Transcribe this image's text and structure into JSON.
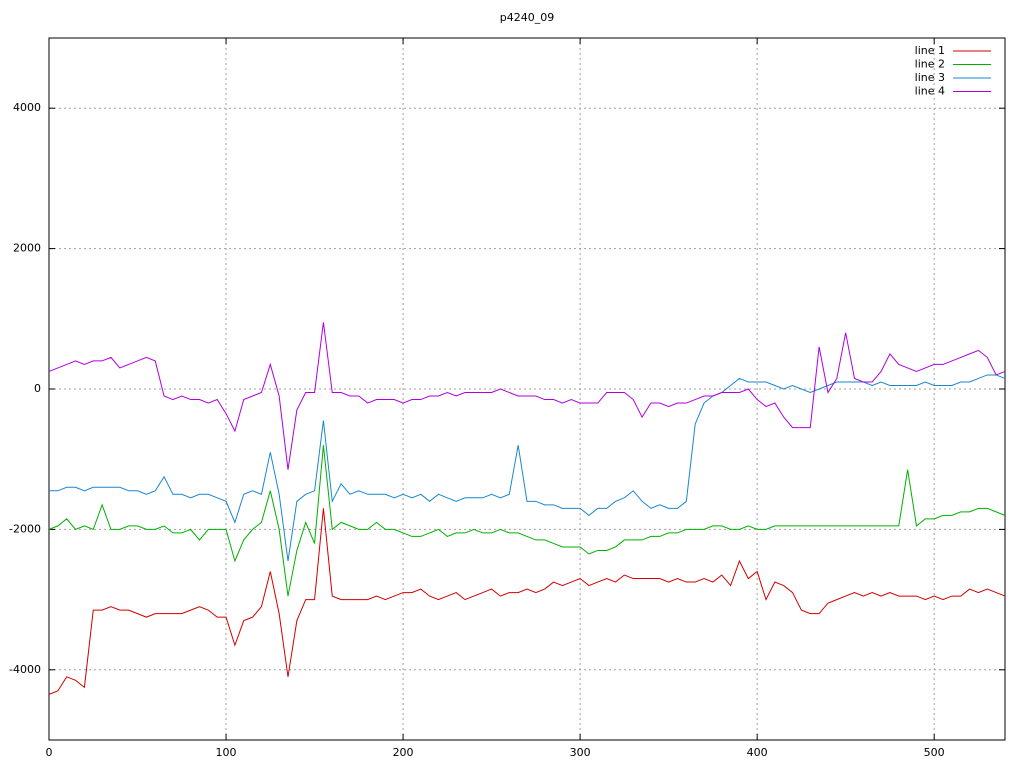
{
  "chart_data": {
    "type": "line",
    "title": "p4240_09",
    "x": [
      0,
      5,
      10,
      15,
      20,
      25,
      30,
      35,
      40,
      45,
      50,
      55,
      60,
      65,
      70,
      75,
      80,
      85,
      90,
      95,
      100,
      105,
      110,
      115,
      120,
      125,
      130,
      135,
      140,
      145,
      150,
      155,
      160,
      165,
      170,
      175,
      180,
      185,
      190,
      195,
      200,
      205,
      210,
      215,
      220,
      225,
      230,
      235,
      240,
      245,
      250,
      255,
      260,
      265,
      270,
      275,
      280,
      285,
      290,
      295,
      300,
      305,
      310,
      315,
      320,
      325,
      330,
      335,
      340,
      345,
      350,
      355,
      360,
      365,
      370,
      375,
      380,
      385,
      390,
      395,
      400,
      405,
      410,
      415,
      420,
      425,
      430,
      435,
      440,
      445,
      450,
      455,
      460,
      465,
      470,
      475,
      480,
      485,
      490,
      495,
      500,
      505,
      510,
      515,
      520,
      525,
      530,
      535,
      540
    ],
    "series": [
      {
        "name": "line 1",
        "color": "#d00000",
        "values": [
          -4350,
          -4300,
          -4100,
          -4150,
          -4250,
          -3150,
          -3150,
          -3100,
          -3150,
          -3150,
          -3200,
          -3250,
          -3200,
          -3200,
          -3200,
          -3200,
          -3150,
          -3100,
          -3150,
          -3250,
          -3250,
          -3650,
          -3300,
          -3250,
          -3100,
          -2600,
          -3200,
          -4100,
          -3300,
          -3000,
          -3000,
          -1700,
          -2950,
          -3000,
          -3000,
          -3000,
          -3000,
          -2950,
          -3000,
          -2950,
          -2900,
          -2900,
          -2850,
          -2950,
          -3000,
          -2950,
          -2900,
          -3000,
          -2950,
          -2900,
          -2850,
          -2950,
          -2900,
          -2900,
          -2850,
          -2900,
          -2850,
          -2750,
          -2800,
          -2750,
          -2700,
          -2800,
          -2750,
          -2700,
          -2750,
          -2650,
          -2700,
          -2700,
          -2700,
          -2700,
          -2750,
          -2700,
          -2750,
          -2750,
          -2700,
          -2750,
          -2650,
          -2800,
          -2450,
          -2700,
          -2600,
          -3000,
          -2750,
          -2800,
          -2900,
          -3150,
          -3200,
          -3200,
          -3050,
          -3000,
          -2950,
          -2900,
          -2950,
          -2900,
          -2950,
          -2900,
          -2950,
          -2950,
          -2950,
          -3000,
          -2950,
          -3000,
          -2950,
          -2950,
          -2850,
          -2900,
          -2850,
          -2900,
          -2950
        ]
      },
      {
        "name": "line 2",
        "color": "#00b000",
        "values": [
          -2000,
          -1950,
          -1850,
          -2000,
          -1950,
          -2000,
          -1650,
          -2000,
          -2000,
          -1950,
          -1950,
          -2000,
          -2000,
          -1950,
          -2050,
          -2050,
          -2000,
          -2150,
          -2000,
          -2000,
          -2000,
          -2450,
          -2150,
          -2000,
          -1900,
          -1450,
          -2000,
          -2950,
          -2300,
          -1900,
          -2200,
          -800,
          -2000,
          -1900,
          -1950,
          -2000,
          -2000,
          -1900,
          -2000,
          -2000,
          -2050,
          -2100,
          -2100,
          -2050,
          -2000,
          -2100,
          -2050,
          -2050,
          -2000,
          -2050,
          -2050,
          -2000,
          -2050,
          -2050,
          -2100,
          -2150,
          -2150,
          -2200,
          -2250,
          -2250,
          -2250,
          -2350,
          -2300,
          -2300,
          -2250,
          -2150,
          -2150,
          -2150,
          -2100,
          -2100,
          -2050,
          -2050,
          -2000,
          -2000,
          -2000,
          -1950,
          -1950,
          -2000,
          -2000,
          -1950,
          -2000,
          -2000,
          -1950,
          -1950,
          -1950,
          -1950,
          -1950,
          -1950,
          -1950,
          -1950,
          -1950,
          -1950,
          -1950,
          -1950,
          -1950,
          -1950,
          -1950,
          -1150,
          -1950,
          -1850,
          -1850,
          -1800,
          -1800,
          -1750,
          -1750,
          -1700,
          -1700,
          -1750,
          -1800
        ]
      },
      {
        "name": "line 3",
        "color": "#1a86d0",
        "values": [
          -1450,
          -1450,
          -1400,
          -1400,
          -1450,
          -1400,
          -1400,
          -1400,
          -1400,
          -1450,
          -1450,
          -1500,
          -1450,
          -1250,
          -1500,
          -1500,
          -1550,
          -1500,
          -1500,
          -1550,
          -1600,
          -1900,
          -1500,
          -1450,
          -1500,
          -900,
          -1500,
          -2450,
          -1600,
          -1500,
          -1450,
          -450,
          -1600,
          -1350,
          -1500,
          -1450,
          -1500,
          -1500,
          -1500,
          -1550,
          -1500,
          -1550,
          -1500,
          -1600,
          -1500,
          -1550,
          -1600,
          -1550,
          -1550,
          -1550,
          -1500,
          -1550,
          -1500,
          -800,
          -1600,
          -1600,
          -1650,
          -1650,
          -1700,
          -1700,
          -1700,
          -1800,
          -1700,
          -1700,
          -1600,
          -1550,
          -1450,
          -1600,
          -1700,
          -1650,
          -1700,
          -1700,
          -1600,
          -500,
          -200,
          -100,
          -50,
          50,
          150,
          100,
          100,
          100,
          50,
          0,
          50,
          0,
          -50,
          0,
          50,
          100,
          100,
          100,
          100,
          50,
          100,
          50,
          50,
          50,
          50,
          100,
          50,
          50,
          50,
          100,
          100,
          150,
          200,
          200,
          150
        ]
      },
      {
        "name": "line 4",
        "color": "#b000e0",
        "values": [
          250,
          300,
          350,
          400,
          350,
          400,
          400,
          450,
          300,
          350,
          400,
          450,
          400,
          -100,
          -150,
          -100,
          -150,
          -150,
          -200,
          -150,
          -350,
          -600,
          -150,
          -100,
          -50,
          350,
          -100,
          -1150,
          -300,
          -50,
          -50,
          950,
          -50,
          -50,
          -100,
          -100,
          -200,
          -150,
          -150,
          -150,
          -200,
          -150,
          -150,
          -100,
          -100,
          -50,
          -100,
          -50,
          -50,
          -50,
          -50,
          0,
          -50,
          -100,
          -100,
          -100,
          -150,
          -150,
          -200,
          -150,
          -200,
          -200,
          -200,
          -50,
          -50,
          -50,
          -150,
          -400,
          -200,
          -200,
          -250,
          -200,
          -200,
          -150,
          -100,
          -100,
          -50,
          -50,
          -50,
          0,
          -150,
          -250,
          -200,
          -400,
          -550,
          -550,
          -550,
          600,
          -50,
          150,
          800,
          150,
          100,
          100,
          250,
          500,
          350,
          300,
          250,
          300,
          350,
          350,
          400,
          450,
          500,
          550,
          450,
          200,
          250
        ]
      }
    ],
    "xlim": [
      0,
      540
    ],
    "xticks": [
      0,
      100,
      200,
      300,
      400,
      500
    ],
    "ylim": [
      -5000,
      5000
    ],
    "yticks": [
      -4000,
      -2000,
      0,
      2000,
      4000
    ],
    "grid": true,
    "legend": "top-right"
  }
}
